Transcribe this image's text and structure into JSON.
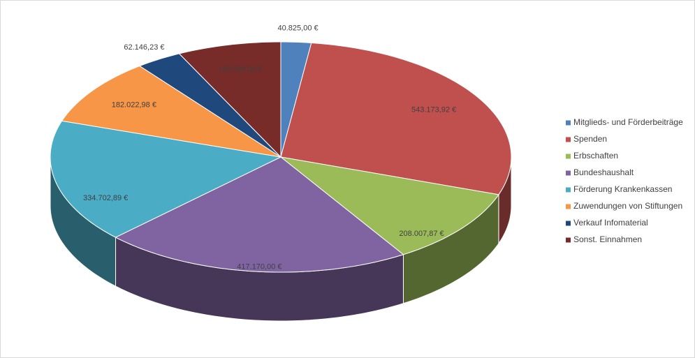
{
  "chart_data": {
    "type": "pie3d",
    "categories": [
      "Mitglieds- und Förderbeiträge",
      "Spenden",
      "Erbschaften",
      "Bundeshaushalt",
      "Förderung Krankenkassen",
      "Zuwendungen von Stiftungen",
      "Verkauf Infomaterial",
      "Sonst. Einnahmen"
    ],
    "values": [
      40825.0,
      543173.92,
      208007.87,
      417170.0,
      334702.89,
      182022.98,
      62146.23,
      140000.0
    ],
    "value_labels": [
      "40.825,00 €",
      "543.173,92 €",
      "208.007,87 €",
      "417.170,00 €",
      "334.702,89 €",
      "182.022,98 €",
      "62.146,23 €",
      "140.000,00 €"
    ],
    "colors": [
      "#4f81bd",
      "#c0504d",
      "#9bbb59",
      "#8064a2",
      "#4bacc6",
      "#f79646",
      "#1f497d",
      "#772c2a"
    ],
    "legend": "right"
  }
}
